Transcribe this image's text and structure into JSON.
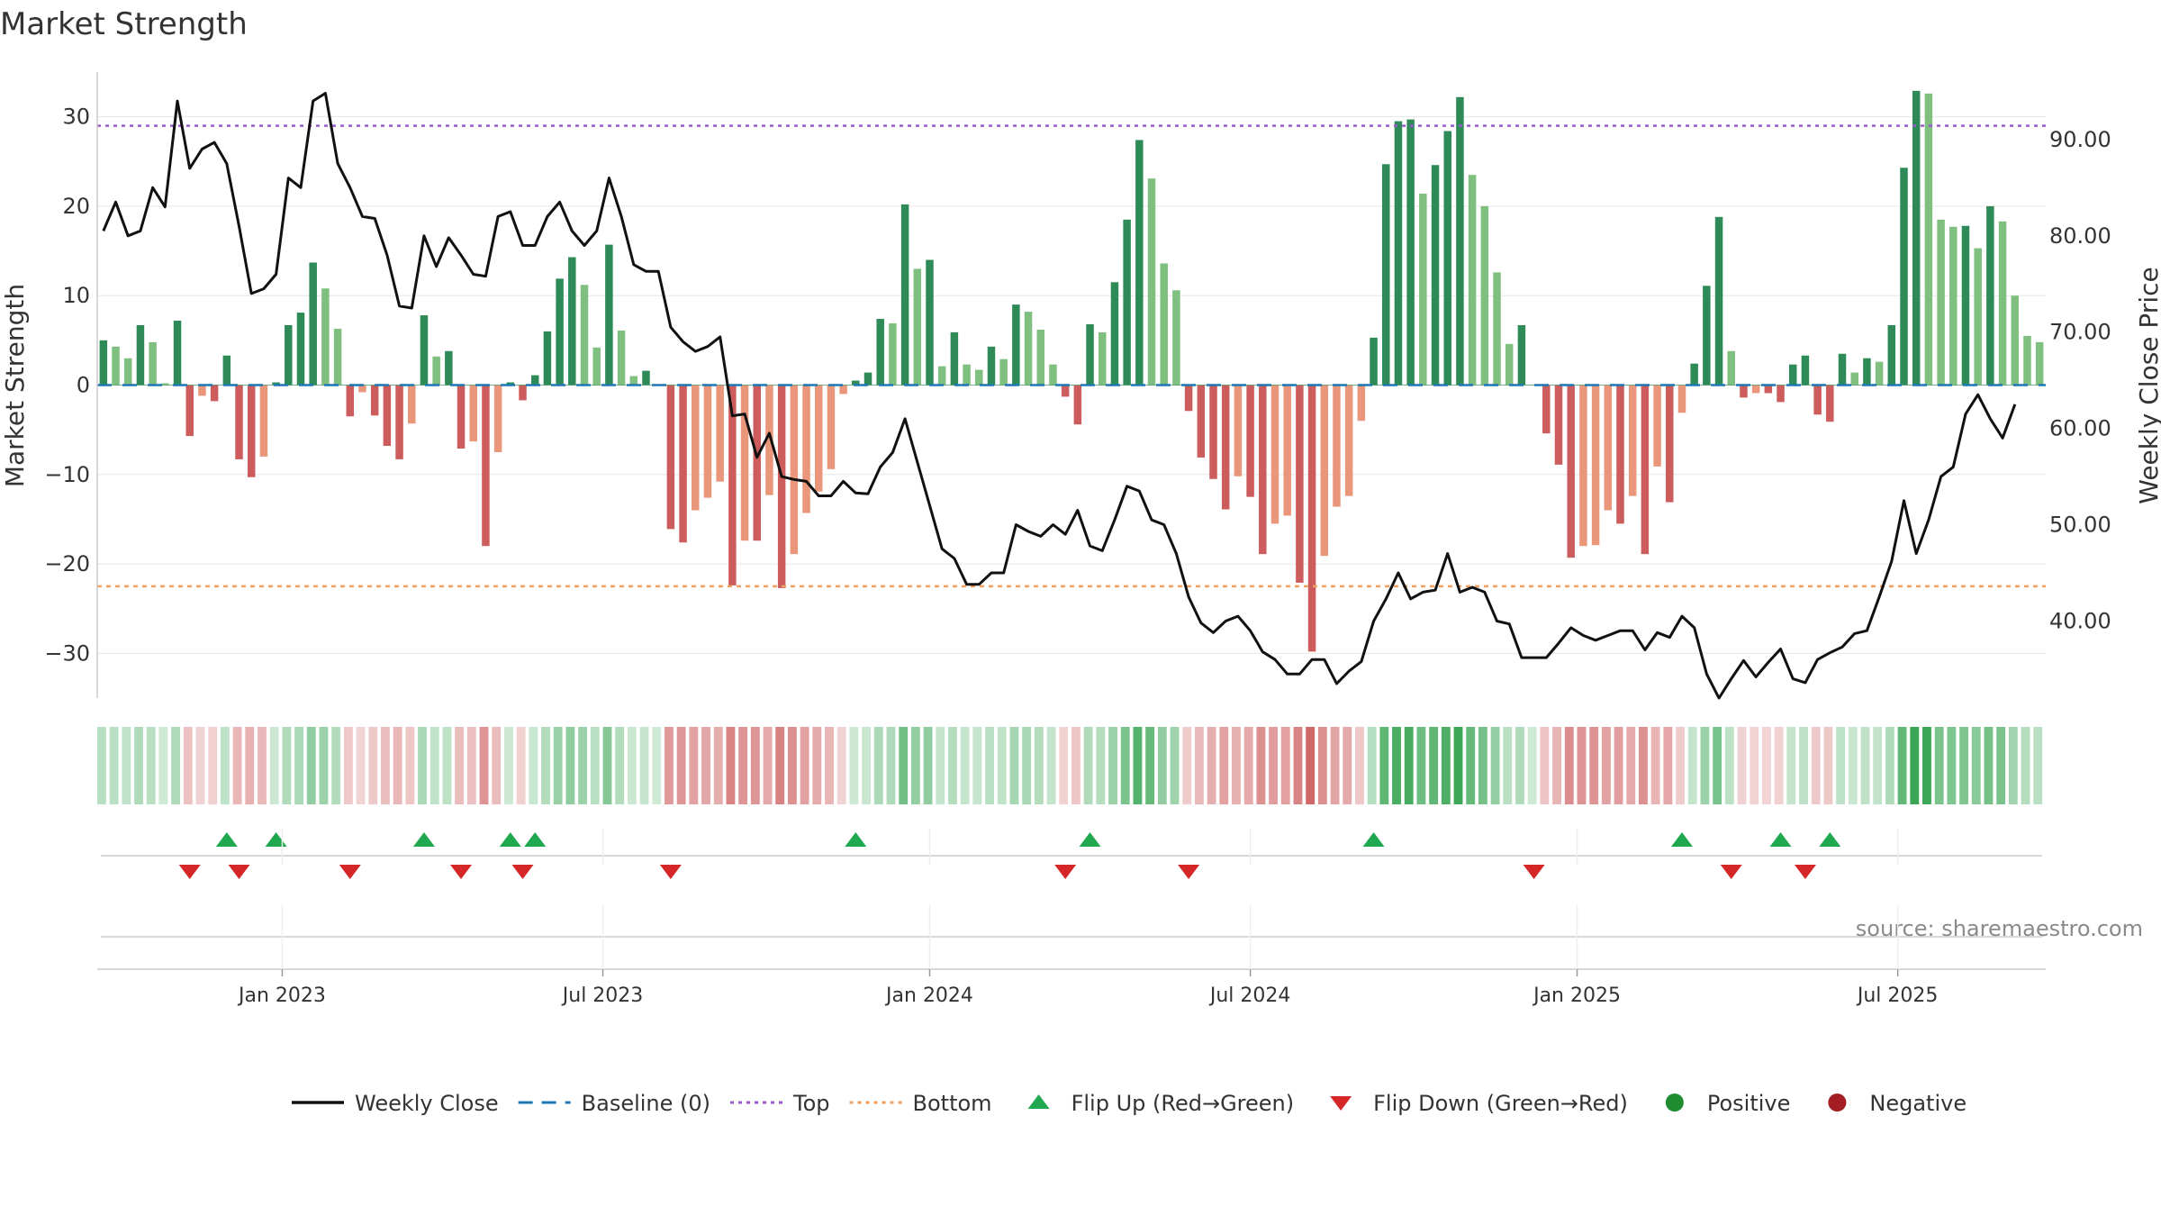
{
  "chart_data": {
    "type": "bar",
    "title": "Market Strength",
    "ylabel_left": "Market Strength",
    "ylabel_right": "Weekly Close Price",
    "source_text": "source: sharemaestro.com",
    "y_left": {
      "min": -35,
      "max": 35,
      "ticks": [
        30,
        20,
        10,
        0,
        -10,
        -20,
        -30
      ],
      "tick_labels": [
        "30",
        "20",
        "10",
        "0",
        "−10",
        "−20",
        "−30"
      ]
    },
    "y_right": {
      "min": 32,
      "max": 97,
      "ticks": [
        90,
        80,
        70,
        60,
        50,
        40
      ],
      "tick_labels": [
        "90.00",
        "80.00",
        "70.00",
        "60.00",
        "50.00",
        "40.00"
      ]
    },
    "thresholds": {
      "top": 29,
      "bottom": -22.5
    },
    "x_ticks": [
      {
        "label": "Jan 2023",
        "index": 15
      },
      {
        "label": "Jul 2023",
        "index": 41
      },
      {
        "label": "Jan 2024",
        "index": 67.5
      },
      {
        "label": "Jul 2024",
        "index": 93.5
      },
      {
        "label": "Jan 2025",
        "index": 120
      },
      {
        "label": "Jul 2025",
        "index": 146
      }
    ],
    "strength": [
      5,
      4.3,
      3,
      6.7,
      4.8,
      0.2,
      7.2,
      -5.7,
      -1.2,
      -1.8,
      3.3,
      -8.3,
      -10.3,
      -8,
      0.3,
      6.7,
      8.1,
      13.7,
      10.8,
      6.3,
      -3.5,
      -0.8,
      -3.4,
      -6.8,
      -8.3,
      -4.3,
      7.8,
      3.2,
      3.8,
      -7.1,
      -6.3,
      -18,
      -7.5,
      0.3,
      -1.7,
      1.1,
      6,
      11.9,
      14.3,
      11.2,
      4.2,
      15.7,
      6.1,
      1,
      1.6,
      0,
      -16.1,
      -17.6,
      -14,
      -12.6,
      -10.8,
      -22.4,
      -17.4,
      -17.4,
      -12.3,
      -22.7,
      -18.9,
      -14.3,
      -11.9,
      -9.4,
      -1,
      0.5,
      1.4,
      7.4,
      6.9,
      20.2,
      13,
      14,
      2.1,
      5.9,
      2.3,
      1.7,
      4.3,
      2.9,
      9,
      8.2,
      6.2,
      2.3,
      -1.3,
      -4.4,
      6.8,
      5.9,
      11.5,
      18.5,
      27.4,
      23.1,
      13.6,
      10.6,
      -2.9,
      -8.1,
      -10.5,
      -13.9,
      -10.2,
      -12.5,
      -18.9,
      -15.5,
      -14.6,
      -22.1,
      -29.8,
      -19.1,
      -13.6,
      -12.4,
      -4,
      5.3,
      24.7,
      29.5,
      29.7,
      21.4,
      24.6,
      28.4,
      32.2,
      23.5,
      20,
      12.6,
      4.6,
      6.7,
      0,
      -5.4,
      -8.9,
      -19.3,
      -18,
      -17.9,
      -14,
      -15.5,
      -12.4,
      -18.9,
      -9.1,
      -13.1,
      -3.1,
      2.4,
      11.1,
      18.8,
      3.8,
      -1.4,
      -0.9,
      -0.9,
      -1.9,
      2.3,
      3.3,
      -3.3,
      -4.1,
      3.5,
      1.4,
      3,
      2.6,
      6.7,
      24.3,
      32.9,
      32.6,
      18.5,
      17.7,
      17.8,
      15.3,
      20,
      18.3,
      10,
      5.5,
      4.8
    ],
    "weekly_close": [
      80.5,
      83.5,
      80,
      80.5,
      85,
      83,
      94,
      87,
      89,
      89.7,
      87.5,
      81,
      74,
      74.5,
      76,
      86,
      85,
      94,
      94.8,
      87.5,
      85,
      82,
      81.8,
      78,
      72.7,
      72.5,
      80,
      76.8,
      79.8,
      78,
      76,
      75.8,
      82,
      82.5,
      79,
      79,
      82,
      83.5,
      80.5,
      79,
      80.5,
      86,
      82,
      77,
      76.3,
      76.3,
      70.5,
      69,
      68,
      68.5,
      69.5,
      61.3,
      61.5,
      57,
      59.5,
      55,
      54.7,
      54.5,
      53,
      53,
      54.5,
      53.3,
      53.2,
      56,
      57.5,
      61,
      56.5,
      52,
      47.5,
      46.5,
      43.8,
      43.8,
      45,
      45,
      50,
      49.3,
      48.8,
      50,
      49,
      51.5,
      47.8,
      47.3,
      50.5,
      54,
      53.5,
      50.5,
      50,
      47,
      42.5,
      39.8,
      38.8,
      40,
      40.5,
      39,
      36.8,
      36,
      34.5,
      34.5,
      36,
      36,
      33.5,
      34.8,
      35.8,
      40,
      42.3,
      45,
      42.3,
      43,
      43.2,
      47,
      43,
      43.5,
      43,
      40,
      39.7,
      36.2,
      36.2,
      36.2,
      37.7,
      39.3,
      38.5,
      38,
      38.5,
      39,
      39,
      37,
      38.8,
      38.3,
      40.5,
      39.3,
      34.5,
      32,
      34,
      35.9,
      34.2,
      35.7,
      37.1,
      34,
      33.6,
      36,
      36.7,
      37.3,
      38.7,
      39,
      42.5,
      46.2,
      52.5,
      47,
      50.5,
      55,
      56,
      61.5,
      63.5,
      61,
      59,
      62.5
    ],
    "flip_up_indices": [
      10,
      14,
      26,
      33,
      35,
      61,
      80,
      103,
      128,
      136,
      140
    ],
    "flip_down_indices": [
      7,
      11,
      20,
      29,
      34,
      46,
      78,
      88,
      116,
      132,
      138
    ],
    "legend": [
      {
        "label": "Weekly Close",
        "kind": "line",
        "color": "#111111"
      },
      {
        "label": "Baseline (0)",
        "kind": "dash",
        "color": "#1f77b4"
      },
      {
        "label": "Top",
        "kind": "dot",
        "color": "#9b59d0"
      },
      {
        "label": "Bottom",
        "kind": "dot",
        "color": "#f0a060"
      },
      {
        "label": "Flip Up (Red→Green)",
        "kind": "up",
        "color": "#1fa84f"
      },
      {
        "label": "Flip Down (Green→Red)",
        "kind": "down",
        "color": "#d62728"
      },
      {
        "label": "Positive",
        "kind": "circle",
        "color": "#1f8c2f"
      },
      {
        "label": "Negative",
        "kind": "circle",
        "color": "#a31e22"
      }
    ],
    "colors": {
      "pos_strong": "#2e8b57",
      "pos_light": "#7fbf7f",
      "neg_strong": "#cd5c5c",
      "neg_light": "#e9967a",
      "heat_pos": "#3aa655",
      "heat_neg": "#cd5c5c",
      "grid": "#e6e6e6",
      "axis": "#cccccc"
    }
  }
}
